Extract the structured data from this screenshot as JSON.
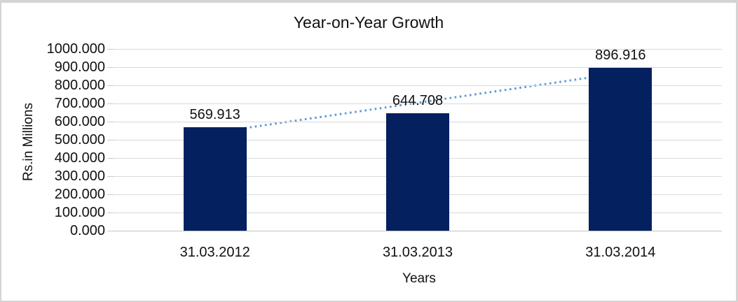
{
  "chart_data": {
    "type": "bar",
    "title": "Year-on-Year Growth",
    "xlabel": "Years",
    "ylabel": "Rs.in Millions",
    "categories": [
      "31.03.2012",
      "31.03.2013",
      "31.03.2014"
    ],
    "values": [
      569.913,
      644.708,
      896.916
    ],
    "data_labels": [
      "569.913",
      "644.708",
      "896.916"
    ],
    "ylim": [
      0,
      1000
    ],
    "ytick_step": 100,
    "ytick_decimals": 3,
    "grid": true,
    "legend_position": "none",
    "bar_color": "#05205f",
    "gridline_color": "#d9d9d9",
    "trendline": {
      "type": "linear",
      "style": "dotted",
      "color": "#5b9bd5"
    }
  }
}
